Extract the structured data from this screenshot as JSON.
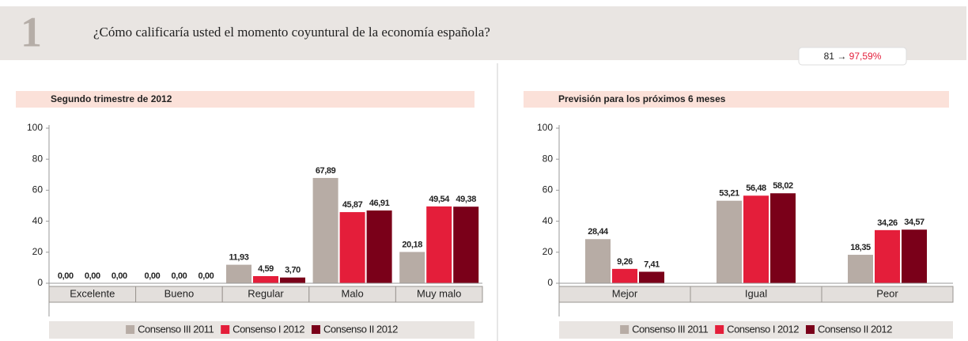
{
  "header": {
    "number": "1",
    "question": "¿Cómo calificaría usted el momento coyuntural de la economía española?",
    "badge": {
      "count": "81",
      "arrow": "→",
      "percent": "97,59%"
    }
  },
  "chart_data": [
    {
      "type": "bar",
      "title": "Segundo trimestre de 2012",
      "categories": [
        "Excelente",
        "Bueno",
        "Regular",
        "Malo",
        "Muy malo"
      ],
      "series": [
        {
          "name": "Consenso III 2011",
          "color": "#b7aca5",
          "values": [
            0,
            0,
            11.93,
            67.89,
            20.18
          ],
          "value_labels": [
            "0,00",
            "0,00",
            "11,93",
            "67,89",
            "20,18"
          ]
        },
        {
          "name": "Consenso I 2012",
          "color": "#e41e3a",
          "values": [
            0,
            0,
            4.59,
            45.87,
            49.54
          ],
          "value_labels": [
            "0,00",
            "0,00",
            "4,59",
            "45,87",
            "49,54"
          ]
        },
        {
          "name": "Consenso II 2012",
          "color": "#7a0019",
          "values": [
            0,
            0,
            3.7,
            46.91,
            49.38
          ],
          "value_labels": [
            "0,00",
            "0,00",
            "3,70",
            "46,91",
            "49,38"
          ]
        }
      ],
      "ylim": [
        0,
        100
      ],
      "yticks": [
        0,
        20,
        40,
        60,
        80,
        100
      ],
      "grid": false
    },
    {
      "type": "bar",
      "title": "Previsión para los próximos 6 meses",
      "categories": [
        "Mejor",
        "Igual",
        "Peor"
      ],
      "series": [
        {
          "name": "Consenso III 2011",
          "color": "#b7aca5",
          "values": [
            28.44,
            53.21,
            18.35
          ],
          "value_labels": [
            "28,44",
            "53,21",
            "18,35"
          ]
        },
        {
          "name": "Consenso I 2012",
          "color": "#e41e3a",
          "values": [
            9.26,
            56.48,
            34.26
          ],
          "value_labels": [
            "9,26",
            "56,48",
            "34,26"
          ]
        },
        {
          "name": "Consenso II 2012",
          "color": "#7a0019",
          "values": [
            7.41,
            58.02,
            34.57
          ],
          "value_labels": [
            "7,41",
            "58,02",
            "34,57"
          ]
        }
      ],
      "ylim": [
        0,
        100
      ],
      "yticks": [
        0,
        20,
        40,
        60,
        80,
        100
      ],
      "grid": false
    }
  ]
}
